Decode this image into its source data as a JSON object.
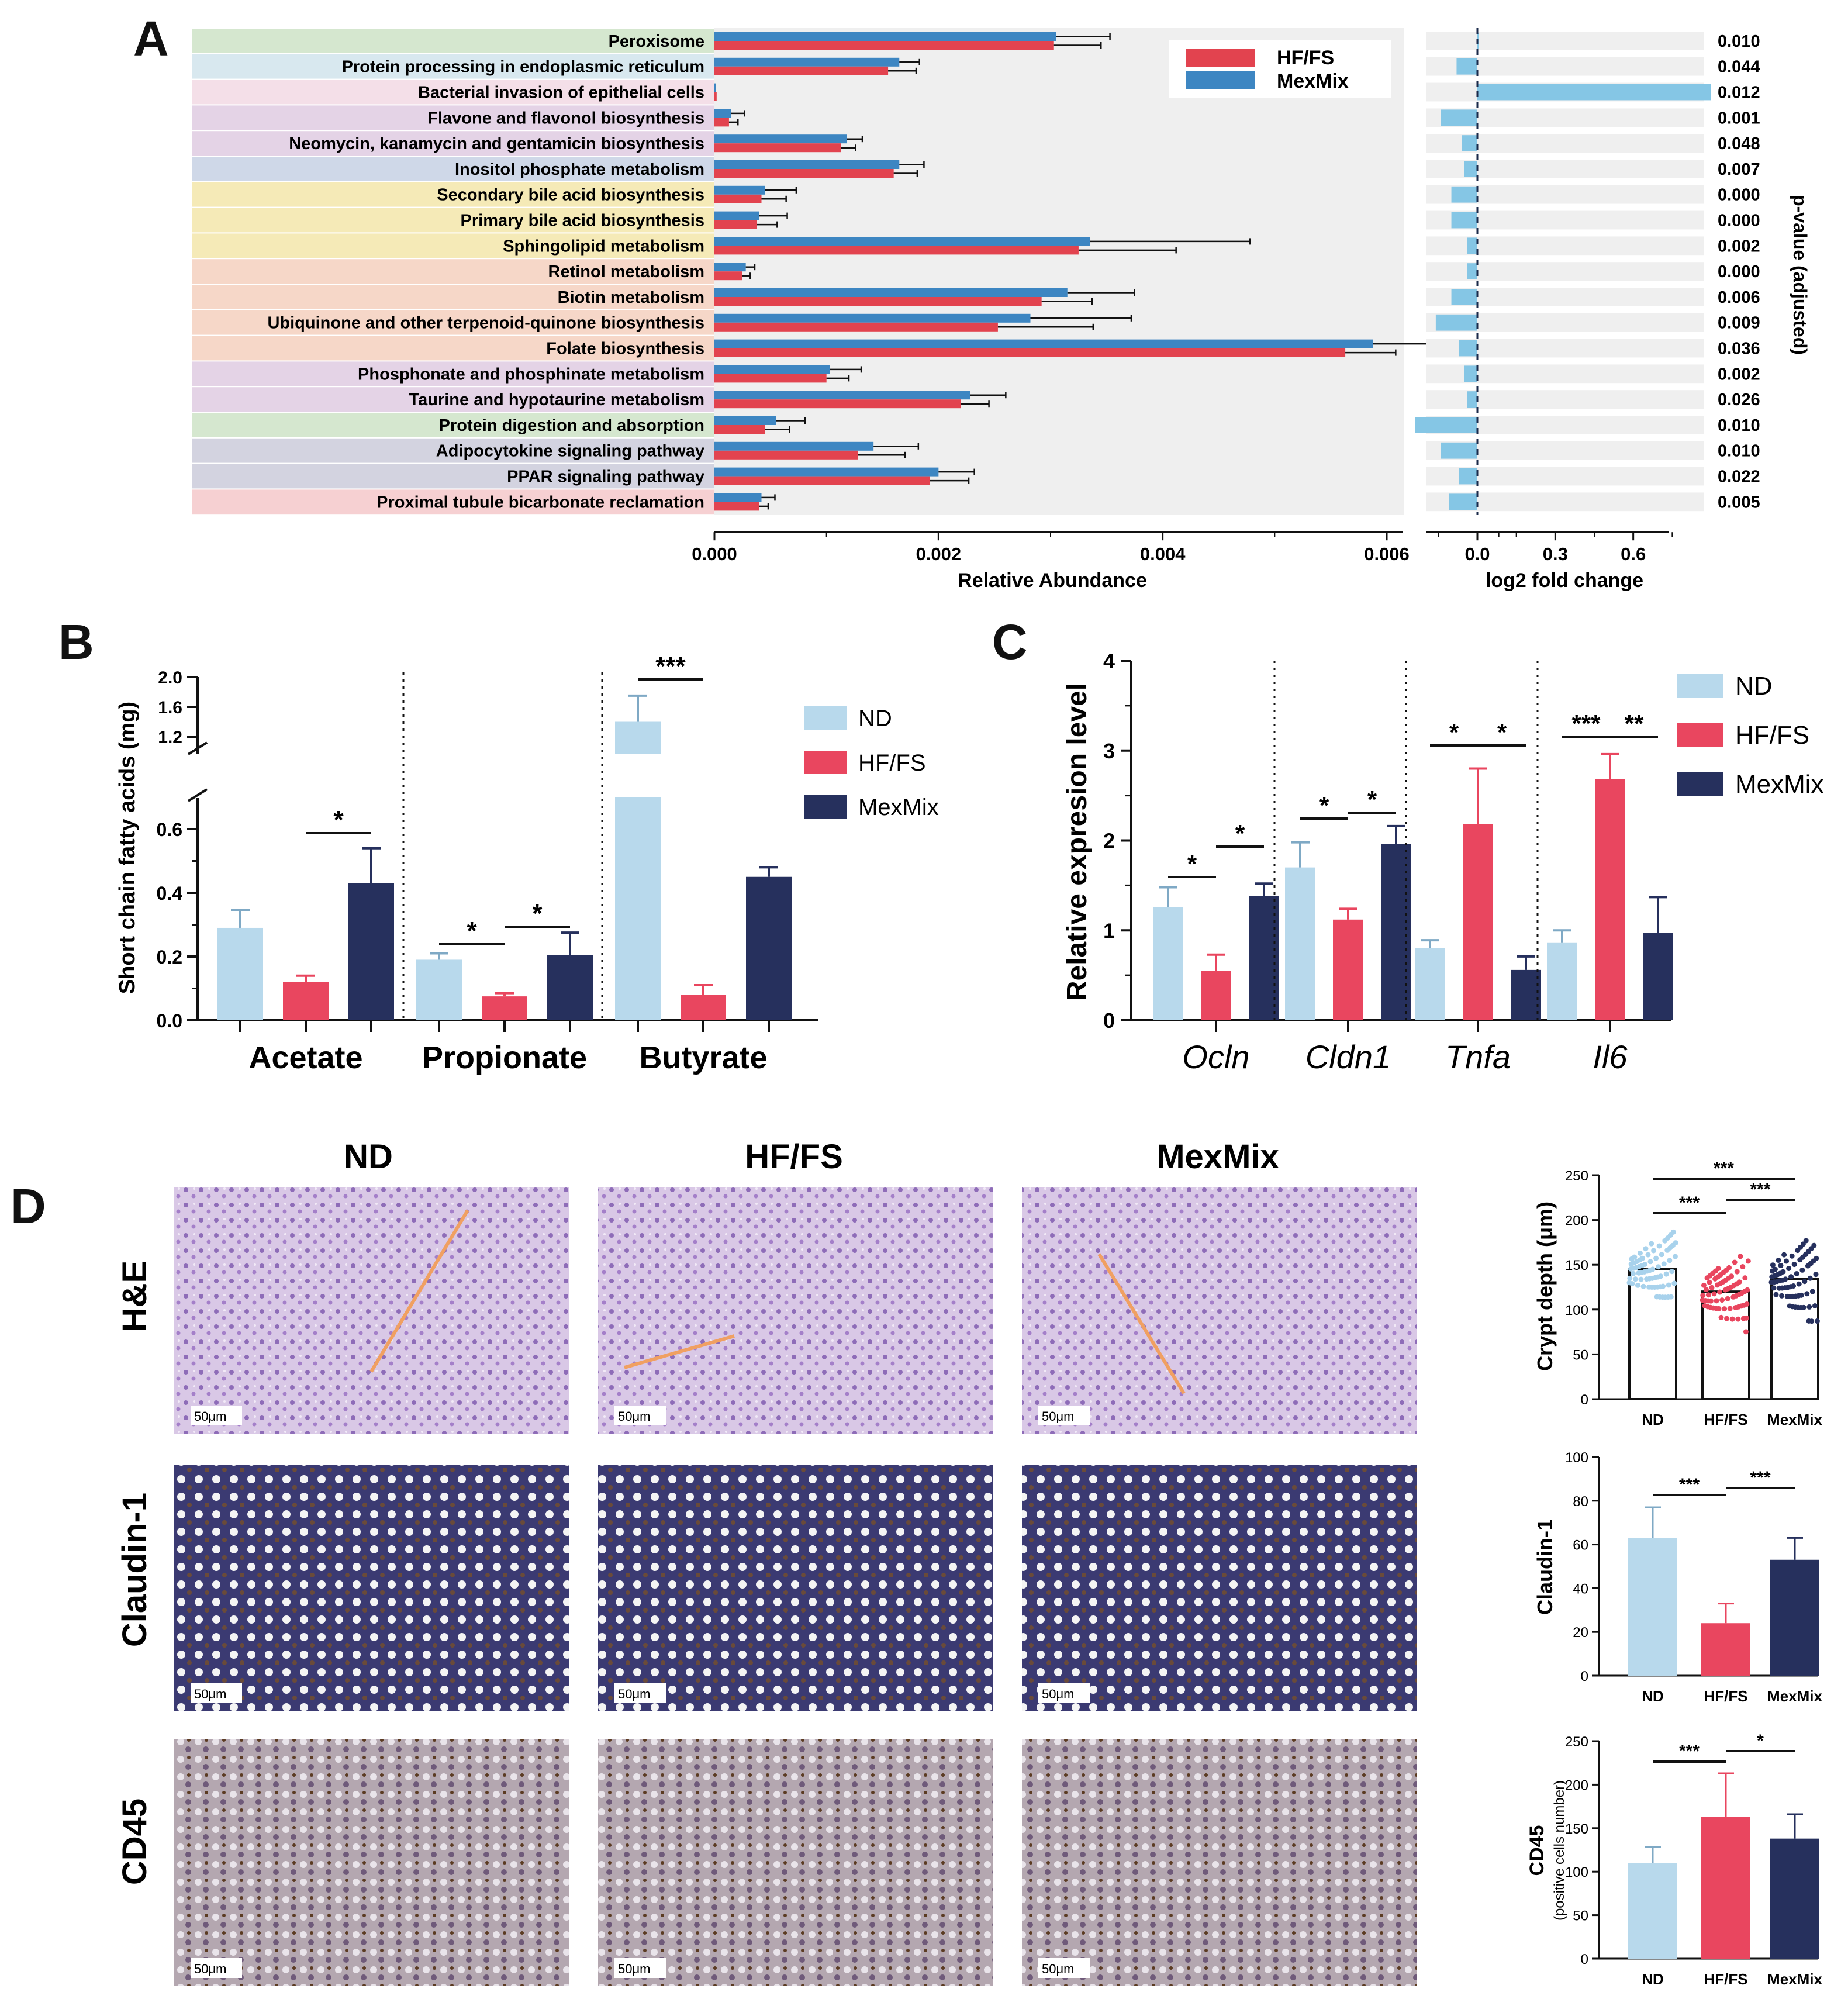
{
  "panel_labels": {
    "a": "A",
    "b": "B",
    "c": "C",
    "d": "D"
  },
  "colors": {
    "HF/FS_bar": "#e2434f",
    "MexMix_bar": "#3d86c2",
    "fold_bar": "#85c6e5",
    "ND": "#b8d9ec",
    "HF/FS": "#e9465f",
    "MexMix": "#26305d",
    "panel_bg": "#efefef"
  },
  "chart_data": [
    {
      "panel": "A-left",
      "type": "bar",
      "orientation": "horizontal",
      "xlabel": "Relative Abundance",
      "xlim": [
        0,
        0.0078
      ],
      "xticks": [
        "0.000",
        "0.002",
        "0.004",
        "0.006"
      ],
      "categories": [
        "Peroxisome",
        "Protein processing in endoplasmic reticulum",
        "Bacterial invasion of epithelial cells",
        "Flavone and flavonol biosynthesis",
        "Neomycin, kanamycin and gentamicin biosynthesis",
        "Inositol phosphate metabolism",
        "Secondary bile acid biosynthesis",
        "Primary bile acid biosynthesis",
        "Sphingolipid metabolism",
        "Retinol metabolism",
        "Biotin metabolism",
        "Ubiquinone and other terpenoid-quinone biosynthesis",
        "Folate biosynthesis",
        "Phosphonate and phosphinate metabolism",
        "Taurine and hypotaurine metabolism",
        "Protein digestion and absorption",
        "Adipocytokine signaling pathway",
        "PPAR signaling pathway",
        "Proximal tubule bicarbonate reclamation"
      ],
      "category_groups": [
        "#d5e7cf",
        "#d8e8ef",
        "#f4dfe8",
        "#e4d3e6",
        "#e4d3e6",
        "#cfd8e8",
        "#f5eab7",
        "#f5eab7",
        "#f5eab7",
        "#f6d7c8",
        "#f6d7c8",
        "#f6d7c8",
        "#f6d7c8",
        "#e4d3e6",
        "#e4d3e6",
        "#d5e7cf",
        "#d3d3e0",
        "#d3d3e0",
        "#f6d0d2"
      ],
      "series": [
        {
          "name": "MexMix",
          "values": [
            0.00305,
            0.00165,
            0.0,
            0.00015,
            0.00118,
            0.00165,
            0.00045,
            0.0004,
            0.00335,
            0.00028,
            0.00315,
            0.00282,
            0.00588,
            0.00103,
            0.00228,
            0.00055,
            0.00142,
            0.002,
            0.00042
          ],
          "errors": [
            0.00048,
            0.00018,
            0.0,
            0.00012,
            0.00014,
            0.00022,
            0.00028,
            0.00025,
            0.00143,
            8e-05,
            0.0006,
            0.0009,
            0.00075,
            0.00028,
            0.00032,
            0.00026,
            0.0004,
            0.00032,
            0.00012
          ]
        },
        {
          "name": "HF/FS",
          "values": [
            0.00303,
            0.00155,
            2e-05,
            0.00013,
            0.00113,
            0.0016,
            0.00042,
            0.00038,
            0.00325,
            0.00025,
            0.00292,
            0.00253,
            0.00563,
            0.001,
            0.0022,
            0.00045,
            0.00128,
            0.00192,
            0.0004
          ],
          "errors": [
            0.00042,
            0.00025,
            0.0,
            8e-05,
            0.00013,
            0.00021,
            0.00022,
            0.00018,
            0.00087,
            7e-05,
            0.00045,
            0.00085,
            0.00045,
            0.0002,
            0.00025,
            0.00022,
            0.00042,
            0.00035,
            8e-05
          ]
        }
      ],
      "legend": [
        "HF/FS",
        "MexMix"
      ],
      "legend_position": "top-right"
    },
    {
      "panel": "A-right",
      "type": "bar",
      "orientation": "horizontal",
      "xlabel": "log2 fold change",
      "xlim": [
        -0.24,
        0.9
      ],
      "xticks": [
        "0.0",
        "0.3",
        "0.6"
      ],
      "values": [
        0.0,
        -0.08,
        0.9,
        -0.14,
        -0.06,
        -0.05,
        -0.1,
        -0.1,
        -0.04,
        -0.04,
        -0.1,
        -0.16,
        -0.07,
        -0.05,
        -0.04,
        -0.24,
        -0.14,
        -0.07,
        -0.11
      ],
      "pvalue_label": "p-value (adjusted)",
      "pvalues": [
        "0.010",
        "0.044",
        "0.012",
        "0.001",
        "0.048",
        "0.007",
        "0.000",
        "0.000",
        "0.002",
        "0.000",
        "0.006",
        "0.009",
        "0.036",
        "0.002",
        "0.026",
        "0.010",
        "0.010",
        "0.022",
        "0.005"
      ]
    },
    {
      "panel": "B",
      "type": "bar",
      "ylabel": "Short chain fatty acids (mg)",
      "categories": [
        "Acetate",
        "Propionate",
        "Butyrate"
      ],
      "yticks_lower": [
        "0.0",
        "0.2",
        "0.4",
        "0.6"
      ],
      "yticks_upper": [
        "1.2",
        "1.6",
        "2.0"
      ],
      "axis_break": [
        0.7,
        1.1
      ],
      "series": [
        {
          "name": "ND",
          "values": [
            0.29,
            0.19,
            1.4
          ],
          "errors": [
            0.055,
            0.02,
            0.35
          ]
        },
        {
          "name": "HF/FS",
          "values": [
            0.12,
            0.075,
            0.08
          ],
          "errors": [
            0.02,
            0.01,
            0.03
          ]
        },
        {
          "name": "MexMix",
          "values": [
            0.43,
            0.205,
            0.45
          ],
          "errors": [
            0.11,
            0.07,
            0.03
          ]
        }
      ],
      "significance": [
        {
          "group": 0,
          "from": 1,
          "to": 2,
          "label": "*"
        },
        {
          "group": 1,
          "from": 0,
          "to": 1,
          "label": "*"
        },
        {
          "group": 1,
          "from": 1,
          "to": 2,
          "label": "*"
        },
        {
          "group": 2,
          "from": 0,
          "to": 1,
          "label": "***"
        }
      ],
      "legend": [
        "ND",
        "HF/FS",
        "MexMix"
      ]
    },
    {
      "panel": "C",
      "type": "bar",
      "ylabel": "Relative expresion level",
      "ylim": [
        0,
        4
      ],
      "yticks": [
        "0",
        "1",
        "2",
        "3",
        "4"
      ],
      "categories": [
        "Ocln",
        "Cldn1",
        "Tnfa",
        "Il6"
      ],
      "series": [
        {
          "name": "ND",
          "values": [
            1.26,
            1.7,
            0.8,
            0.86
          ],
          "errors": [
            0.22,
            0.28,
            0.09,
            0.14
          ]
        },
        {
          "name": "HF/FS",
          "values": [
            0.55,
            1.12,
            2.18,
            2.68
          ],
          "errors": [
            0.18,
            0.12,
            0.62,
            0.28
          ]
        },
        {
          "name": "MexMix",
          "values": [
            1.38,
            1.96,
            0.56,
            0.97
          ],
          "errors": [
            0.14,
            0.2,
            0.15,
            0.4
          ]
        }
      ],
      "significance": [
        {
          "group": 0,
          "from": 0,
          "to": 1,
          "label": "*"
        },
        {
          "group": 0,
          "from": 1,
          "to": 2,
          "label": "*"
        },
        {
          "group": 1,
          "from": 0,
          "to": 1,
          "label": "*"
        },
        {
          "group": 1,
          "from": 1,
          "to": 2,
          "label": "*"
        },
        {
          "group": 2,
          "from": 0,
          "to": 1,
          "label": "*"
        },
        {
          "group": 2,
          "from": 1,
          "to": 2,
          "label": "*"
        },
        {
          "group": 3,
          "from": 0,
          "to": 1,
          "label": "***"
        },
        {
          "group": 3,
          "from": 1,
          "to": 2,
          "label": "**"
        }
      ],
      "legend": [
        "ND",
        "HF/FS",
        "MexMix"
      ]
    },
    {
      "panel": "D-crypt",
      "type": "scatter",
      "ylabel": "Crypt depth  (μm)",
      "ylim": [
        0,
        250
      ],
      "yticks": [
        "0",
        "50",
        "100",
        "150",
        "200",
        "250"
      ],
      "categories": [
        "ND",
        "HF/FS",
        "MexMix"
      ],
      "means": [
        145,
        120,
        134
      ],
      "significance": [
        {
          "from": 0,
          "to": 2,
          "label": "***"
        },
        {
          "from": 0,
          "to": 1,
          "label": "***"
        },
        {
          "from": 1,
          "to": 2,
          "label": "***"
        }
      ]
    },
    {
      "panel": "D-claudin",
      "type": "bar",
      "ylabel": "Claudin-1",
      "ylim": [
        0,
        100
      ],
      "yticks": [
        "0",
        "20",
        "40",
        "60",
        "80",
        "100"
      ],
      "categories": [
        "ND",
        "HF/FS",
        "MexMix"
      ],
      "values": [
        63,
        24,
        53
      ],
      "errors": [
        14,
        9,
        10
      ],
      "significance": [
        {
          "from": 0,
          "to": 1,
          "label": "***"
        },
        {
          "from": 1,
          "to": 2,
          "label": "***"
        }
      ]
    },
    {
      "panel": "D-cd45",
      "type": "bar",
      "ylabel": "CD45",
      "ylabel2": "(positive cells number)",
      "ylim": [
        0,
        250
      ],
      "yticks": [
        "0",
        "50",
        "100",
        "150",
        "200",
        "250"
      ],
      "categories": [
        "ND",
        "HF/FS",
        "MexMix"
      ],
      "values": [
        110,
        163,
        138
      ],
      "errors": [
        18,
        50,
        28
      ],
      "significance": [
        {
          "from": 0,
          "to": 1,
          "label": "***"
        },
        {
          "from": 1,
          "to": 2,
          "label": "*"
        }
      ]
    }
  ],
  "histology": {
    "columns": [
      "ND",
      "HF/FS",
      "MexMix"
    ],
    "rows": [
      "H&E",
      "Claudin-1",
      "CD45"
    ],
    "scale_bar": "50μm"
  }
}
